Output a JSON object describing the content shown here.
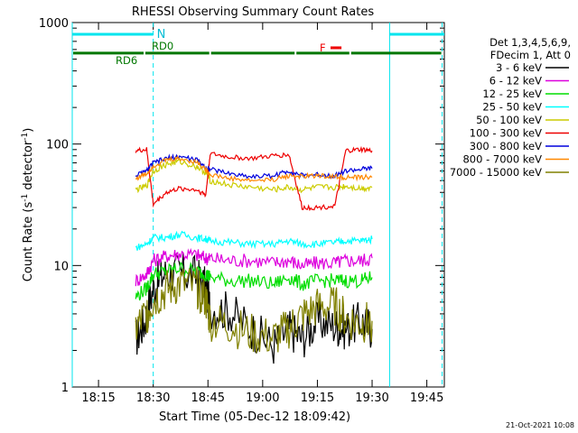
{
  "chart_data": {
    "type": "line",
    "title": "RHESSI Observing Summary Count Rates",
    "xlabel": "Start Time (05-Dec-12 18:09:42)",
    "ylabel_main": "Count Rate (s",
    "ylabel_sup1": "-1",
    "ylabel_mid": " detector",
    "ylabel_sup2": "-1",
    "ylabel_end": ")",
    "y_scale": "log",
    "ylim": [
      1,
      1000
    ],
    "xlim": [
      18.13,
      19.83
    ],
    "x_ticks": [
      {
        "value": 18.25,
        "label": "18:15"
      },
      {
        "value": 18.5,
        "label": "18:30"
      },
      {
        "value": 18.75,
        "label": "18:45"
      },
      {
        "value": 19.0,
        "label": "19:00"
      },
      {
        "value": 19.25,
        "label": "19:15"
      },
      {
        "value": 19.5,
        "label": "19:30"
      },
      {
        "value": 19.75,
        "label": "19:45"
      }
    ],
    "y_ticks": [
      {
        "value": 1,
        "label": "1"
      },
      {
        "value": 10,
        "label": "10"
      },
      {
        "value": 100,
        "label": "100"
      },
      {
        "value": 1000,
        "label": "1000"
      }
    ],
    "legend_header": [
      "Det 1,3,4,5,6,9,",
      "FDecim 1, Att 0"
    ],
    "series": [
      {
        "name": "3 - 6 keV",
        "color": "#000000",
        "values": [
          [
            18.42,
            2.5
          ],
          [
            18.46,
            3.4
          ],
          [
            18.5,
            6.5
          ],
          [
            18.55,
            8.5
          ],
          [
            18.62,
            8.8
          ],
          [
            18.7,
            8.2
          ],
          [
            18.74,
            6.5
          ],
          [
            18.76,
            4.5
          ],
          [
            18.85,
            4.2
          ],
          [
            18.95,
            3.0
          ],
          [
            19.05,
            2.2
          ],
          [
            19.12,
            3.0
          ],
          [
            19.18,
            2.5
          ],
          [
            19.25,
            3.5
          ],
          [
            19.33,
            3.2
          ],
          [
            19.38,
            3.0
          ],
          [
            19.45,
            3.5
          ],
          [
            19.5,
            3.0
          ]
        ]
      },
      {
        "name": "6 - 12 keV",
        "color": "#dd00dd",
        "values": [
          [
            18.42,
            7.5
          ],
          [
            18.47,
            8.5
          ],
          [
            18.5,
            11.0
          ],
          [
            18.56,
            12.0
          ],
          [
            18.62,
            12.5
          ],
          [
            18.7,
            12.2
          ],
          [
            18.74,
            11.5
          ],
          [
            18.76,
            11.5
          ],
          [
            18.85,
            11.0
          ],
          [
            18.95,
            11.0
          ],
          [
            19.05,
            10.5
          ],
          [
            19.12,
            11.0
          ],
          [
            19.18,
            10.0
          ],
          [
            19.25,
            10.5
          ],
          [
            19.33,
            10.5
          ],
          [
            19.38,
            11.0
          ],
          [
            19.45,
            11.0
          ],
          [
            19.5,
            11.5
          ]
        ]
      },
      {
        "name": "12 - 25 keV",
        "color": "#00dd00",
        "values": [
          [
            18.42,
            5.5
          ],
          [
            18.47,
            6.5
          ],
          [
            18.5,
            8.5
          ],
          [
            18.56,
            9.0
          ],
          [
            18.62,
            9.5
          ],
          [
            18.7,
            9.0
          ],
          [
            18.74,
            8.5
          ],
          [
            18.76,
            8.0
          ],
          [
            18.85,
            7.5
          ],
          [
            18.95,
            7.5
          ],
          [
            19.05,
            7.0
          ],
          [
            19.12,
            8.0
          ],
          [
            19.18,
            7.0
          ],
          [
            19.25,
            7.5
          ],
          [
            19.33,
            7.5
          ],
          [
            19.38,
            7.5
          ],
          [
            19.45,
            7.5
          ],
          [
            19.5,
            8.0
          ]
        ]
      },
      {
        "name": "25 - 50 keV",
        "color": "#00ffff",
        "values": [
          [
            18.42,
            14
          ],
          [
            18.47,
            15
          ],
          [
            18.5,
            17
          ],
          [
            18.56,
            17
          ],
          [
            18.62,
            18
          ],
          [
            18.7,
            17
          ],
          [
            18.74,
            16.5
          ],
          [
            18.76,
            16
          ],
          [
            18.85,
            15.5
          ],
          [
            18.95,
            15
          ],
          [
            19.05,
            15
          ],
          [
            19.12,
            16
          ],
          [
            19.18,
            15
          ],
          [
            19.25,
            15
          ],
          [
            19.33,
            15.5
          ],
          [
            19.38,
            16
          ],
          [
            19.45,
            16
          ],
          [
            19.5,
            16.5
          ]
        ]
      },
      {
        "name": "50 - 100 keV",
        "color": "#cccc00",
        "values": [
          [
            18.42,
            42
          ],
          [
            18.47,
            45
          ],
          [
            18.5,
            60
          ],
          [
            18.56,
            68
          ],
          [
            18.62,
            72
          ],
          [
            18.7,
            65
          ],
          [
            18.74,
            58
          ],
          [
            18.76,
            50
          ],
          [
            18.85,
            46
          ],
          [
            18.95,
            44
          ],
          [
            19.05,
            42
          ],
          [
            19.12,
            44
          ],
          [
            19.18,
            42
          ],
          [
            19.25,
            44
          ],
          [
            19.33,
            44
          ],
          [
            19.38,
            45
          ],
          [
            19.45,
            43
          ],
          [
            19.5,
            44
          ]
        ]
      },
      {
        "name": "100 - 300 keV",
        "color": "#ee0000",
        "values": [
          [
            18.42,
            88
          ],
          [
            18.47,
            90
          ],
          [
            18.5,
            32
          ],
          [
            18.56,
            40
          ],
          [
            18.62,
            43
          ],
          [
            18.7,
            42
          ],
          [
            18.74,
            38
          ],
          [
            18.76,
            83
          ],
          [
            18.85,
            78
          ],
          [
            18.95,
            76
          ],
          [
            19.05,
            80
          ],
          [
            19.12,
            82
          ],
          [
            19.18,
            30
          ],
          [
            19.25,
            30
          ],
          [
            19.33,
            31
          ],
          [
            19.38,
            88
          ],
          [
            19.45,
            90
          ],
          [
            19.5,
            88
          ]
        ]
      },
      {
        "name": "300 - 800 keV",
        "color": "#0000dd",
        "values": [
          [
            18.42,
            55
          ],
          [
            18.47,
            60
          ],
          [
            18.5,
            70
          ],
          [
            18.56,
            76
          ],
          [
            18.62,
            79
          ],
          [
            18.7,
            74
          ],
          [
            18.74,
            64
          ],
          [
            18.76,
            62
          ],
          [
            18.85,
            57
          ],
          [
            18.95,
            54
          ],
          [
            19.05,
            55
          ],
          [
            19.12,
            60
          ],
          [
            19.18,
            55
          ],
          [
            19.25,
            56
          ],
          [
            19.33,
            55
          ],
          [
            19.38,
            60
          ],
          [
            19.45,
            62
          ],
          [
            19.5,
            63
          ]
        ]
      },
      {
        "name": "800 - 7000 keV",
        "color": "#ff8800",
        "values": [
          [
            18.42,
            52
          ],
          [
            18.47,
            57
          ],
          [
            18.5,
            66
          ],
          [
            18.56,
            74
          ],
          [
            18.62,
            76
          ],
          [
            18.7,
            71
          ],
          [
            18.74,
            62
          ],
          [
            18.76,
            56
          ],
          [
            18.85,
            52
          ],
          [
            18.95,
            50
          ],
          [
            19.05,
            51
          ],
          [
            19.12,
            55
          ],
          [
            19.18,
            54
          ],
          [
            19.25,
            55
          ],
          [
            19.33,
            54
          ],
          [
            19.38,
            53
          ],
          [
            19.45,
            53
          ],
          [
            19.5,
            54
          ]
        ]
      },
      {
        "name": "7000 - 15000 keV",
        "color": "#808000",
        "values": [
          [
            18.42,
            3.0
          ],
          [
            18.47,
            4.0
          ],
          [
            18.5,
            5.2
          ],
          [
            18.56,
            6.2
          ],
          [
            18.62,
            7.0
          ],
          [
            18.7,
            6.5
          ],
          [
            18.74,
            5.2
          ],
          [
            18.76,
            3.5
          ],
          [
            18.85,
            3.2
          ],
          [
            18.95,
            2.7
          ],
          [
            19.05,
            2.5
          ],
          [
            19.12,
            3.0
          ],
          [
            19.18,
            3.8
          ],
          [
            19.25,
            4.5
          ],
          [
            19.33,
            4.6
          ],
          [
            19.38,
            3.6
          ],
          [
            19.45,
            3.3
          ],
          [
            19.5,
            3.5
          ]
        ]
      }
    ],
    "markers": {
      "night_label": "N",
      "night_intervals": [
        [
          18.13,
          18.5
        ],
        [
          19.58,
          19.83
        ]
      ],
      "night_y": 800,
      "rd0_label": "RD0",
      "rd6_label": "RD6",
      "rd_intervals": [
        [
          18.13,
          18.46
        ],
        [
          18.46,
          18.76
        ],
        [
          18.76,
          19.15
        ],
        [
          19.15,
          19.4
        ],
        [
          19.4,
          19.82
        ]
      ],
      "rd_y": 560,
      "flare_label": "F",
      "flare_interval": [
        19.31,
        19.36
      ],
      "flare_y": 620,
      "saa_lines": [
        18.13,
        18.5,
        19.58,
        19.82
      ]
    },
    "footer": "21-Oct-2021 10:08"
  }
}
